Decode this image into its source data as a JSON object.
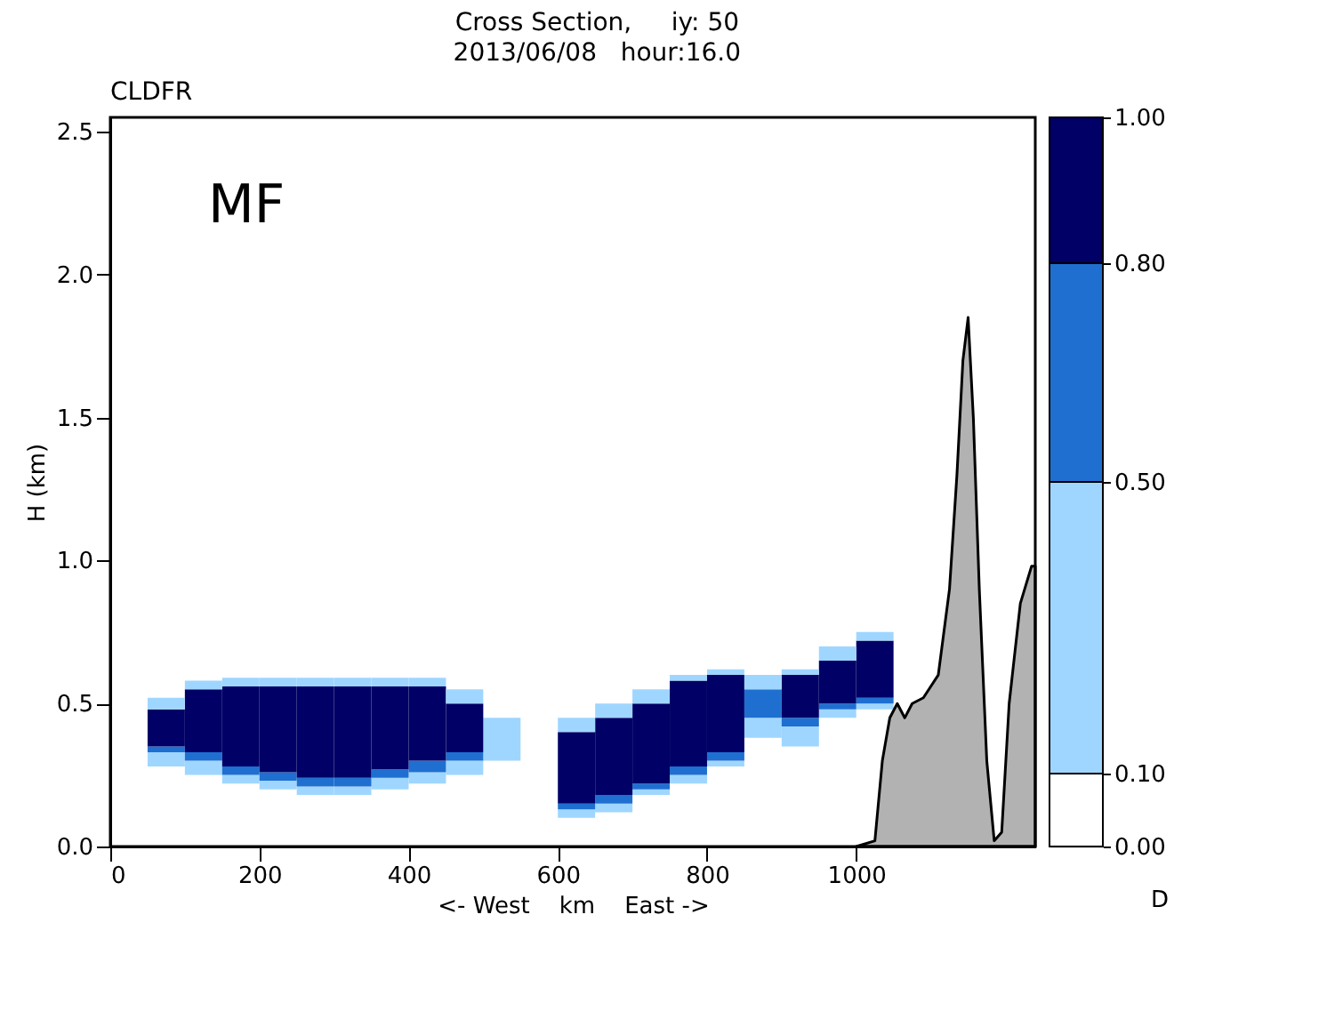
{
  "chart_data": {
    "type": "bar",
    "title": "Cross Section,     iy: 50",
    "subtitle": "2013/06/08   hour:16.0",
    "xlabel": "<- West    km    East ->",
    "ylabel": "H (km)",
    "clabel": "D",
    "annotations": [
      "CLDFR",
      "MF"
    ],
    "x": [
      75,
      125,
      175,
      225,
      275,
      325,
      375,
      425,
      475,
      525,
      575,
      625,
      675,
      725,
      775,
      825,
      875,
      925,
      975,
      1025
    ],
    "series": [
      {
        "color": "#9fd6ff",
        "base": [
          0.28,
          0.25,
          0.22,
          0.2,
          0.18,
          0.18,
          0.2,
          0.22,
          0.25,
          0.3,
          null,
          0.1,
          0.12,
          0.18,
          0.22,
          0.28,
          0.38,
          0.35,
          0.45,
          0.48
        ],
        "values": [
          0.05,
          0.05,
          0.03,
          0.03,
          0.03,
          0.03,
          0.04,
          0.04,
          0.05,
          0.15,
          null,
          0.03,
          0.03,
          0.02,
          0.03,
          0.02,
          0.07,
          0.07,
          0.03,
          0.02
        ]
      },
      {
        "color": "#1f6fd0",
        "base": [
          0.33,
          0.3,
          0.25,
          0.23,
          0.21,
          0.21,
          0.24,
          0.26,
          0.3,
          null,
          null,
          0.13,
          0.15,
          0.2,
          0.25,
          0.3,
          0.45,
          0.42,
          0.48,
          0.5
        ],
        "values": [
          0.02,
          0.03,
          0.03,
          0.03,
          0.03,
          0.03,
          0.03,
          0.04,
          0.03,
          null,
          null,
          0.02,
          0.03,
          0.02,
          0.03,
          0.03,
          0.1,
          0.03,
          0.02,
          0.02
        ]
      },
      {
        "color": "#000066",
        "base": [
          0.35,
          0.33,
          0.28,
          0.26,
          0.24,
          0.24,
          0.27,
          0.3,
          0.33,
          null,
          null,
          0.15,
          0.18,
          0.22,
          0.28,
          0.33,
          null,
          0.45,
          0.5,
          0.52
        ],
        "values": [
          0.13,
          0.22,
          0.28,
          0.3,
          0.32,
          0.32,
          0.29,
          0.26,
          0.17,
          null,
          null,
          0.25,
          0.27,
          0.28,
          0.3,
          0.27,
          null,
          0.15,
          0.15,
          0.2
        ]
      },
      {
        "color": "#9fd6ff",
        "base": [
          0.48,
          0.55,
          0.56,
          0.56,
          0.56,
          0.56,
          0.56,
          0.56,
          0.5,
          null,
          null,
          0.4,
          0.45,
          0.5,
          0.58,
          0.6,
          0.55,
          0.6,
          0.65,
          0.72
        ],
        "values": [
          0.04,
          0.03,
          0.03,
          0.03,
          0.03,
          0.03,
          0.03,
          0.03,
          0.05,
          null,
          null,
          0.05,
          0.05,
          0.05,
          0.02,
          0.02,
          0.05,
          0.02,
          0.05,
          0.03
        ]
      },
      {
        "type": "area",
        "color": "#000000",
        "x": [
          1000,
          1025,
          1035,
          1045,
          1055,
          1065,
          1075,
          1090,
          1110,
          1125,
          1135,
          1143,
          1150,
          1157,
          1165,
          1175,
          1185,
          1195,
          1205,
          1220,
          1235,
          1240
        ],
        "values": [
          0,
          0.02,
          0.3,
          0.45,
          0.5,
          0.45,
          0.5,
          0.52,
          0.6,
          0.9,
          1.3,
          1.7,
          1.85,
          1.5,
          0.9,
          0.3,
          0.02,
          0.05,
          0.5,
          0.85,
          0.98,
          0.98
        ]
      }
    ],
    "clim": [
      0,
      1
    ],
    "cticks": [
      {
        "value": 0,
        "label": "0.00"
      },
      {
        "value": 0.1,
        "label": "0.10"
      },
      {
        "value": 0.5,
        "label": "0.50"
      },
      {
        "value": 0.8,
        "label": "0.80"
      },
      {
        "value": 1,
        "label": "1.00"
      }
    ],
    "xlim": [
      0,
      1240
    ],
    "xticks": [
      0,
      200,
      400,
      600,
      800,
      1000
    ],
    "ylim": [
      0,
      2.55
    ],
    "yticks": [
      {
        "value": 0,
        "label": "0.0"
      },
      {
        "value": 0.5,
        "label": "0.5"
      },
      {
        "value": 1,
        "label": "1.0"
      },
      {
        "value": 1.5,
        "label": "1.5"
      },
      {
        "value": 2,
        "label": "2.0"
      },
      {
        "value": 2.5,
        "label": "2.5"
      }
    ],
    "grid": false
  }
}
